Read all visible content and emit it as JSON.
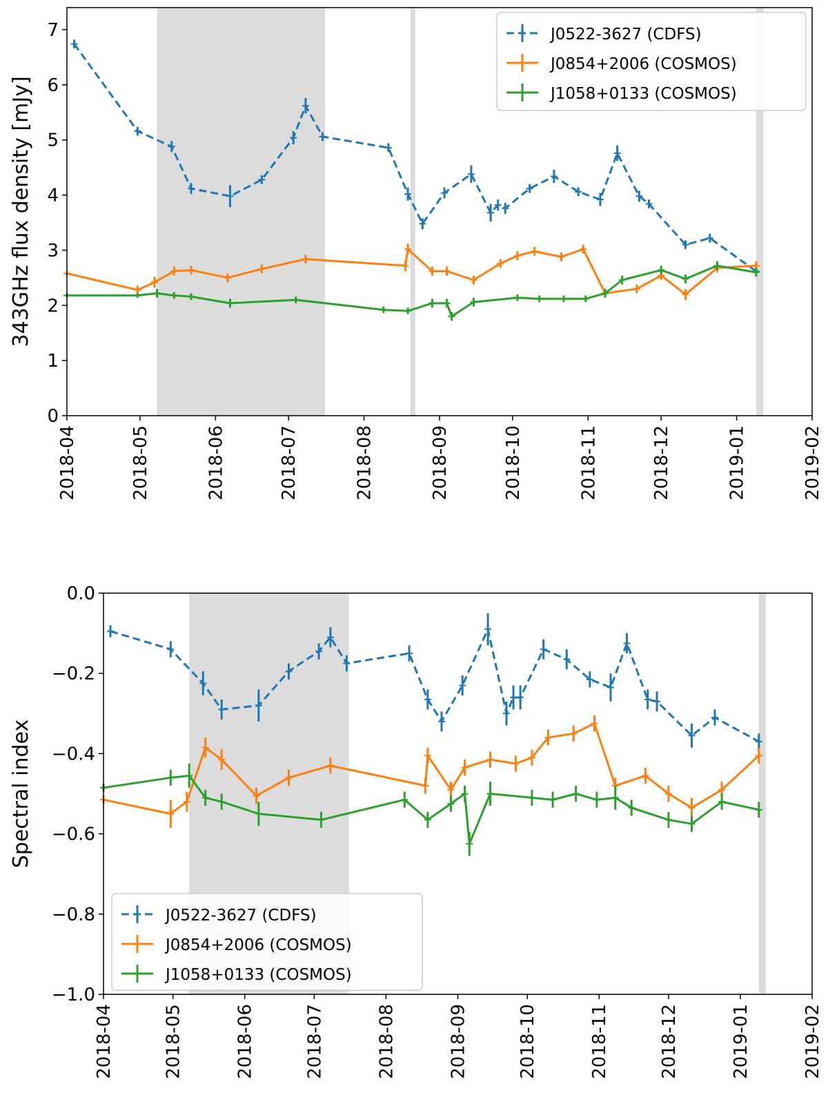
{
  "colors": {
    "blue": "#1f77b4",
    "orange": "#ff7f0e",
    "green": "#2ca02c",
    "band": "#dcdcdc"
  },
  "chart_data": [
    {
      "type": "line",
      "title": "",
      "xlabel": "",
      "ylabel": "343GHz flux density [mJy]",
      "xlim": [
        "2018-04-01",
        "2019-02-01"
      ],
      "ylim": [
        0,
        7.4
      ],
      "yticks": [
        0,
        1,
        2,
        3,
        4,
        5,
        6,
        7
      ],
      "ytick_labels": [
        "0",
        "1",
        "2",
        "3",
        "4",
        "5",
        "6",
        "7"
      ],
      "xtick_labels": [
        "2018-04",
        "2018-05",
        "2018-06",
        "2018-07",
        "2018-08",
        "2018-09",
        "2018-10",
        "2018-11",
        "2018-12",
        "2019-01",
        "2019-02"
      ],
      "grid": false,
      "legend_position": "top-right",
      "shaded_intervals": [
        [
          "2018-05-08",
          "2018-07-16"
        ],
        [
          "2018-08-20",
          "2018-08-22"
        ],
        [
          "2019-01-09",
          "2019-01-12"
        ]
      ],
      "series": [
        {
          "name": "J0522-3627 (CDFS)",
          "color": "blue",
          "style": "dashed",
          "points": [
            [
              "2018-04-04",
              6.74,
              0.08
            ],
            [
              "2018-04-30",
              5.16,
              0.08
            ],
            [
              "2018-05-14",
              4.88,
              0.1
            ],
            [
              "2018-05-22",
              4.12,
              0.1
            ],
            [
              "2018-06-07",
              3.98,
              0.2
            ],
            [
              "2018-06-20",
              4.28,
              0.08
            ],
            [
              "2018-07-03",
              5.04,
              0.12
            ],
            [
              "2018-07-08",
              5.62,
              0.14
            ],
            [
              "2018-07-15",
              5.06,
              0.08
            ],
            [
              "2018-08-11",
              4.86,
              0.08
            ],
            [
              "2018-08-19",
              4.02,
              0.12
            ],
            [
              "2018-08-25",
              3.48,
              0.1
            ],
            [
              "2018-09-03",
              4.04,
              0.1
            ],
            [
              "2018-09-14",
              4.38,
              0.16
            ],
            [
              "2018-09-22",
              3.68,
              0.16
            ],
            [
              "2018-09-25",
              3.82,
              0.1
            ],
            [
              "2018-09-28",
              3.76,
              0.1
            ],
            [
              "2018-10-08",
              4.12,
              0.08
            ],
            [
              "2018-10-18",
              4.34,
              0.12
            ],
            [
              "2018-10-28",
              4.06,
              0.08
            ],
            [
              "2018-11-06",
              3.92,
              0.12
            ],
            [
              "2018-11-13",
              4.76,
              0.14
            ],
            [
              "2018-11-22",
              3.98,
              0.1
            ],
            [
              "2018-11-26",
              3.84,
              0.08
            ],
            [
              "2018-12-11",
              3.1,
              0.08
            ],
            [
              "2018-12-21",
              3.22,
              0.08
            ],
            [
              "2019-01-09",
              2.62,
              0.08
            ]
          ]
        },
        {
          "name": "J0854+2006 (COSMOS)",
          "color": "orange",
          "style": "solid",
          "points": [
            [
              "2018-04-01",
              2.58,
              0.04
            ],
            [
              "2018-04-30",
              2.28,
              0.08
            ],
            [
              "2018-05-07",
              2.42,
              0.1
            ],
            [
              "2018-05-15",
              2.62,
              0.08
            ],
            [
              "2018-05-22",
              2.64,
              0.08
            ],
            [
              "2018-06-06",
              2.5,
              0.08
            ],
            [
              "2018-06-20",
              2.66,
              0.08
            ],
            [
              "2018-07-08",
              2.84,
              0.08
            ],
            [
              "2018-08-18",
              2.72,
              0.1
            ],
            [
              "2018-08-19",
              3.02,
              0.1
            ],
            [
              "2018-08-29",
              2.62,
              0.08
            ],
            [
              "2018-09-04",
              2.62,
              0.08
            ],
            [
              "2018-09-15",
              2.46,
              0.08
            ],
            [
              "2018-09-26",
              2.76,
              0.08
            ],
            [
              "2018-10-03",
              2.9,
              0.08
            ],
            [
              "2018-10-10",
              2.98,
              0.08
            ],
            [
              "2018-10-21",
              2.88,
              0.08
            ],
            [
              "2018-10-30",
              3.02,
              0.08
            ],
            [
              "2018-11-08",
              2.22,
              0.08
            ],
            [
              "2018-11-21",
              2.3,
              0.08
            ],
            [
              "2018-12-01",
              2.54,
              0.08
            ],
            [
              "2018-12-11",
              2.2,
              0.1
            ],
            [
              "2018-12-24",
              2.68,
              0.08
            ],
            [
              "2019-01-09",
              2.72,
              0.08
            ]
          ]
        },
        {
          "name": "J1058+0133 (COSMOS)",
          "color": "green",
          "style": "solid",
          "points": [
            [
              "2018-04-01",
              2.18,
              0.04
            ],
            [
              "2018-04-30",
              2.18,
              0.04
            ],
            [
              "2018-05-08",
              2.22,
              0.08
            ],
            [
              "2018-05-15",
              2.18,
              0.06
            ],
            [
              "2018-05-22",
              2.16,
              0.06
            ],
            [
              "2018-06-07",
              2.04,
              0.08
            ],
            [
              "2018-07-04",
              2.1,
              0.06
            ],
            [
              "2018-08-09",
              1.92,
              0.06
            ],
            [
              "2018-08-19",
              1.9,
              0.06
            ],
            [
              "2018-08-29",
              2.04,
              0.08
            ],
            [
              "2018-09-04",
              2.04,
              0.08
            ],
            [
              "2018-09-06",
              1.8,
              0.08
            ],
            [
              "2018-09-15",
              2.06,
              0.08
            ],
            [
              "2018-10-03",
              2.14,
              0.06
            ],
            [
              "2018-10-12",
              2.12,
              0.06
            ],
            [
              "2018-10-22",
              2.12,
              0.06
            ],
            [
              "2018-10-31",
              2.12,
              0.06
            ],
            [
              "2018-11-08",
              2.22,
              0.08
            ],
            [
              "2018-11-15",
              2.46,
              0.08
            ],
            [
              "2018-12-01",
              2.64,
              0.08
            ],
            [
              "2018-12-11",
              2.48,
              0.08
            ],
            [
              "2018-12-24",
              2.72,
              0.08
            ],
            [
              "2019-01-09",
              2.6,
              0.08
            ]
          ]
        }
      ]
    },
    {
      "type": "line",
      "title": "",
      "xlabel": "",
      "ylabel": "Spectral index",
      "xlim": [
        "2018-04-01",
        "2019-02-01"
      ],
      "ylim": [
        -1.0,
        0.0
      ],
      "yticks": [
        -1.0,
        -0.8,
        -0.6,
        -0.4,
        -0.2,
        0.0
      ],
      "ytick_labels": [
        "−1.0",
        "−0.8",
        "−0.6",
        "−0.4",
        "−0.2",
        "0.0"
      ],
      "xtick_labels": [
        "2018-04",
        "2018-05",
        "2018-06",
        "2018-07",
        "2018-08",
        "2018-09",
        "2018-10",
        "2018-11",
        "2018-12",
        "2019-01",
        "2019-02"
      ],
      "grid": false,
      "legend_position": "bottom-left",
      "shaded_intervals": [
        [
          "2018-05-08",
          "2018-07-16"
        ],
        [
          "2019-01-09",
          "2019-01-12"
        ]
      ],
      "series": [
        {
          "name": "J0522-3627 (CDFS)",
          "color": "blue",
          "style": "dashed",
          "points": [
            [
              "2018-04-04",
              -0.095,
              0.015
            ],
            [
              "2018-04-30",
              -0.14,
              0.02
            ],
            [
              "2018-05-14",
              -0.225,
              0.03
            ],
            [
              "2018-05-22",
              -0.29,
              0.025
            ],
            [
              "2018-06-07",
              -0.28,
              0.04
            ],
            [
              "2018-06-20",
              -0.195,
              0.02
            ],
            [
              "2018-07-03",
              -0.145,
              0.02
            ],
            [
              "2018-07-08",
              -0.11,
              0.025
            ],
            [
              "2018-07-15",
              -0.175,
              0.02
            ],
            [
              "2018-08-11",
              -0.15,
              0.02
            ],
            [
              "2018-08-19",
              -0.265,
              0.025
            ],
            [
              "2018-08-25",
              -0.32,
              0.025
            ],
            [
              "2018-09-03",
              -0.23,
              0.025
            ],
            [
              "2018-09-14",
              -0.09,
              0.04
            ],
            [
              "2018-09-22",
              -0.3,
              0.03
            ],
            [
              "2018-09-25",
              -0.26,
              0.03
            ],
            [
              "2018-09-28",
              -0.26,
              0.03
            ],
            [
              "2018-10-08",
              -0.14,
              0.025
            ],
            [
              "2018-10-18",
              -0.165,
              0.025
            ],
            [
              "2018-10-28",
              -0.215,
              0.02
            ],
            [
              "2018-11-06",
              -0.235,
              0.035
            ],
            [
              "2018-11-13",
              -0.125,
              0.025
            ],
            [
              "2018-11-22",
              -0.265,
              0.025
            ],
            [
              "2018-11-26",
              -0.27,
              0.025
            ],
            [
              "2018-12-11",
              -0.355,
              0.03
            ],
            [
              "2018-12-21",
              -0.31,
              0.02
            ],
            [
              "2019-01-09",
              -0.37,
              0.02
            ]
          ]
        },
        {
          "name": "J0854+2006 (COSMOS)",
          "color": "orange",
          "style": "solid",
          "points": [
            [
              "2018-04-01",
              -0.515,
              0.01
            ],
            [
              "2018-04-30",
              -0.55,
              0.035
            ],
            [
              "2018-05-07",
              -0.52,
              0.025
            ],
            [
              "2018-05-15",
              -0.385,
              0.025
            ],
            [
              "2018-05-22",
              -0.415,
              0.025
            ],
            [
              "2018-06-06",
              -0.505,
              0.02
            ],
            [
              "2018-06-20",
              -0.46,
              0.02
            ],
            [
              "2018-07-08",
              -0.43,
              0.02
            ],
            [
              "2018-08-18",
              -0.48,
              0.02
            ],
            [
              "2018-08-19",
              -0.405,
              0.02
            ],
            [
              "2018-08-29",
              -0.49,
              0.02
            ],
            [
              "2018-09-04",
              -0.435,
              0.02
            ],
            [
              "2018-09-15",
              -0.415,
              0.02
            ],
            [
              "2018-09-26",
              -0.425,
              0.02
            ],
            [
              "2018-10-03",
              -0.41,
              0.02
            ],
            [
              "2018-10-10",
              -0.36,
              0.02
            ],
            [
              "2018-10-21",
              -0.35,
              0.02
            ],
            [
              "2018-10-30",
              -0.325,
              0.02
            ],
            [
              "2018-11-08",
              -0.48,
              0.02
            ],
            [
              "2018-11-21",
              -0.455,
              0.02
            ],
            [
              "2018-12-01",
              -0.5,
              0.02
            ],
            [
              "2018-12-11",
              -0.535,
              0.025
            ],
            [
              "2018-12-24",
              -0.49,
              0.02
            ],
            [
              "2019-01-09",
              -0.405,
              0.02
            ]
          ]
        },
        {
          "name": "J1058+0133 (COSMOS)",
          "color": "green",
          "style": "solid",
          "points": [
            [
              "2018-04-01",
              -0.485,
              0.01
            ],
            [
              "2018-04-30",
              -0.46,
              0.02
            ],
            [
              "2018-05-08",
              -0.455,
              0.03
            ],
            [
              "2018-05-15",
              -0.51,
              0.02
            ],
            [
              "2018-05-22",
              -0.52,
              0.02
            ],
            [
              "2018-06-07",
              -0.55,
              0.03
            ],
            [
              "2018-07-04",
              -0.565,
              0.02
            ],
            [
              "2018-08-09",
              -0.515,
              0.02
            ],
            [
              "2018-08-19",
              -0.565,
              0.02
            ],
            [
              "2018-08-29",
              -0.525,
              0.02
            ],
            [
              "2018-09-04",
              -0.5,
              0.02
            ],
            [
              "2018-09-06",
              -0.625,
              0.03
            ],
            [
              "2018-09-15",
              -0.5,
              0.03
            ],
            [
              "2018-10-03",
              -0.51,
              0.02
            ],
            [
              "2018-10-12",
              -0.515,
              0.02
            ],
            [
              "2018-10-22",
              -0.5,
              0.02
            ],
            [
              "2018-10-31",
              -0.515,
              0.02
            ],
            [
              "2018-11-08",
              -0.51,
              0.03
            ],
            [
              "2018-11-15",
              -0.535,
              0.02
            ],
            [
              "2018-12-01",
              -0.565,
              0.02
            ],
            [
              "2018-12-11",
              -0.575,
              0.02
            ],
            [
              "2018-12-24",
              -0.52,
              0.02
            ],
            [
              "2019-01-09",
              -0.54,
              0.02
            ]
          ]
        }
      ]
    }
  ]
}
